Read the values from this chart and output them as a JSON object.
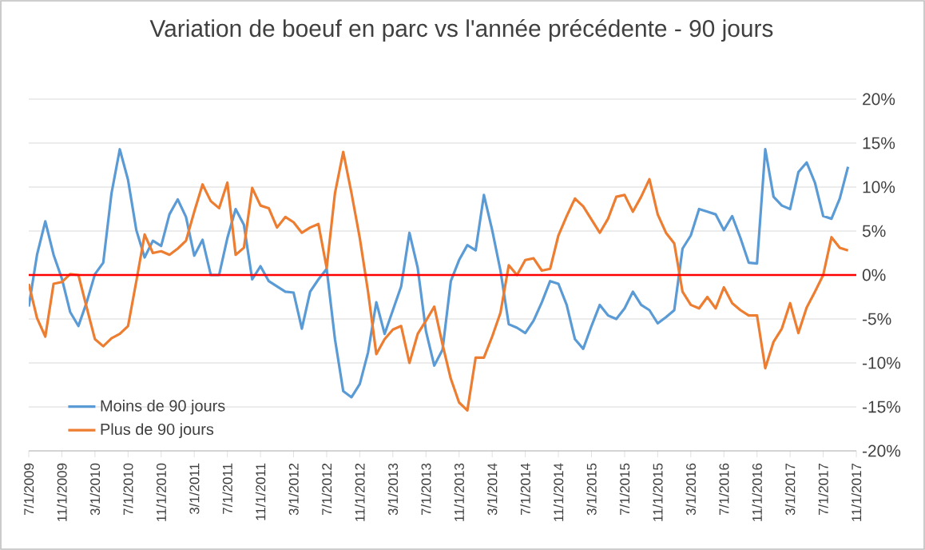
{
  "chart_data": {
    "type": "line",
    "title": "Variation de boeuf en parc vs l'année précédente - 90 jours",
    "categories": [
      "7/1/2009",
      null,
      null,
      null,
      "11/1/2009",
      null,
      null,
      null,
      "3/1/2010",
      null,
      null,
      null,
      "7/1/2010",
      null,
      null,
      null,
      "11/1/2010",
      null,
      null,
      null,
      "3/1/2011",
      null,
      null,
      null,
      "7/1/2011",
      null,
      null,
      null,
      "11/1/2011",
      null,
      null,
      null,
      "3/1/2012",
      null,
      null,
      null,
      "7/1/2012",
      null,
      null,
      null,
      "11/1/2012",
      null,
      null,
      null,
      "3/1/2013",
      null,
      null,
      null,
      "7/1/2013",
      null,
      null,
      null,
      "11/1/2013",
      null,
      null,
      null,
      "3/1/2014",
      null,
      null,
      null,
      "7/1/2014",
      null,
      null,
      null,
      "11/1/2014",
      null,
      null,
      null,
      "3/1/2015",
      null,
      null,
      null,
      "7/1/2015",
      null,
      null,
      null,
      "11/1/2015",
      null,
      null,
      null,
      "3/1/2016",
      null,
      null,
      null,
      "7/1/2016",
      null,
      null,
      null,
      "11/1/2016",
      null,
      null,
      null,
      "3/1/2017",
      null,
      null,
      null,
      "7/1/2017",
      null,
      null,
      null,
      "11/1/2017"
    ],
    "series": [
      {
        "name": "Moins de 90 jours",
        "color": "#5b9bd5",
        "values": [
          -3.6,
          2.3,
          6.1,
          2.3,
          -0.4,
          -4.2,
          -5.8,
          -3.1,
          0.1,
          1.4,
          9.3,
          14.3,
          10.8,
          5.1,
          2.0,
          3.9,
          3.3,
          6.9,
          8.6,
          6.6,
          2.2,
          4.0,
          0,
          0,
          4.2,
          7.5,
          5.7,
          -0.5,
          1.0,
          -0.7,
          -1.3,
          -1.9,
          -2.0,
          -6.1,
          -1.9,
          -0.5,
          0.7,
          -7.3,
          -13.2,
          -13.9,
          -12.4,
          -8.8,
          -3.1,
          -6.7,
          -4.0,
          -1.3,
          4.8,
          0.8,
          -6.4,
          -10.3,
          -8.5,
          -0.7,
          1.7,
          3.4,
          2.8,
          9.1,
          5.1,
          0.5,
          -5.6,
          -6.0,
          -6.6,
          -5.2,
          -3.1,
          -0.7,
          -1.0,
          -3.4,
          -7.3,
          -8.4,
          -5.8,
          -3.4,
          -4.6,
          -5.0,
          -3.8,
          -1.9,
          -3.4,
          -4.0,
          -5.5,
          -4.8,
          -4.0,
          3.0,
          4.5,
          7.5,
          7.2,
          6.9,
          5.1,
          6.7,
          4.2,
          1.4,
          1.3,
          14.3,
          8.9,
          7.9,
          7.5,
          11.7,
          12.8,
          10.5,
          6.7,
          6.4,
          8.7,
          12.3,
          null
        ]
      },
      {
        "name": "Plus de 90 jours",
        "color": "#ed7d31",
        "values": [
          -1.0,
          -4.9,
          -7.0,
          -1.0,
          -0.8,
          0.1,
          0,
          -3.7,
          -7.3,
          -8.1,
          -7.2,
          -6.7,
          -5.8,
          -0.7,
          4.6,
          2.5,
          2.7,
          2.3,
          3.0,
          3.9,
          7.2,
          10.3,
          8.4,
          7.6,
          10.5,
          2.3,
          3.1,
          9.9,
          7.9,
          7.6,
          5.4,
          6.6,
          6.0,
          4.8,
          5.4,
          5.8,
          0.8,
          9.3,
          14.0,
          9.3,
          4.2,
          -1.9,
          -9.0,
          -7.3,
          -6.2,
          -5.8,
          -10.0,
          -6.7,
          -5.2,
          -3.6,
          -7.9,
          -11.8,
          -14.5,
          -15.4,
          -9.4,
          -9.4,
          -7.0,
          -4.3,
          1.1,
          0,
          1.7,
          1.9,
          0.5,
          0.7,
          4.5,
          6.7,
          8.7,
          7.8,
          6.3,
          4.8,
          6.4,
          8.9,
          9.1,
          7.2,
          8.9,
          10.9,
          6.9,
          4.8,
          3.6,
          -1.9,
          -3.4,
          -3.8,
          -2.5,
          -3.8,
          -1.4,
          -3.2,
          -4.0,
          -4.6,
          -4.6,
          -10.6,
          -7.6,
          -6.1,
          -3.2,
          -6.6,
          -3.7,
          -1.9,
          0,
          4.3,
          3.1,
          2.8,
          null
        ]
      }
    ],
    "ylim": [
      -20,
      20
    ],
    "yticks": [
      {
        "value": 20,
        "label": "20%"
      },
      {
        "value": 15,
        "label": "15%"
      },
      {
        "value": 10,
        "label": "10%"
      },
      {
        "value": 5,
        "label": "5%"
      },
      {
        "value": 0,
        "label": "0%"
      },
      {
        "value": -5,
        "label": "-5%"
      },
      {
        "value": -10,
        "label": "-10%"
      },
      {
        "value": -15,
        "label": "-15%"
      },
      {
        "value": -20,
        "label": "-20%"
      }
    ],
    "grid": "y",
    "legend": "bottom left",
    "ref_lines": [
      {
        "axis": "y",
        "value": 0,
        "color": "#ff0000"
      }
    ]
  }
}
